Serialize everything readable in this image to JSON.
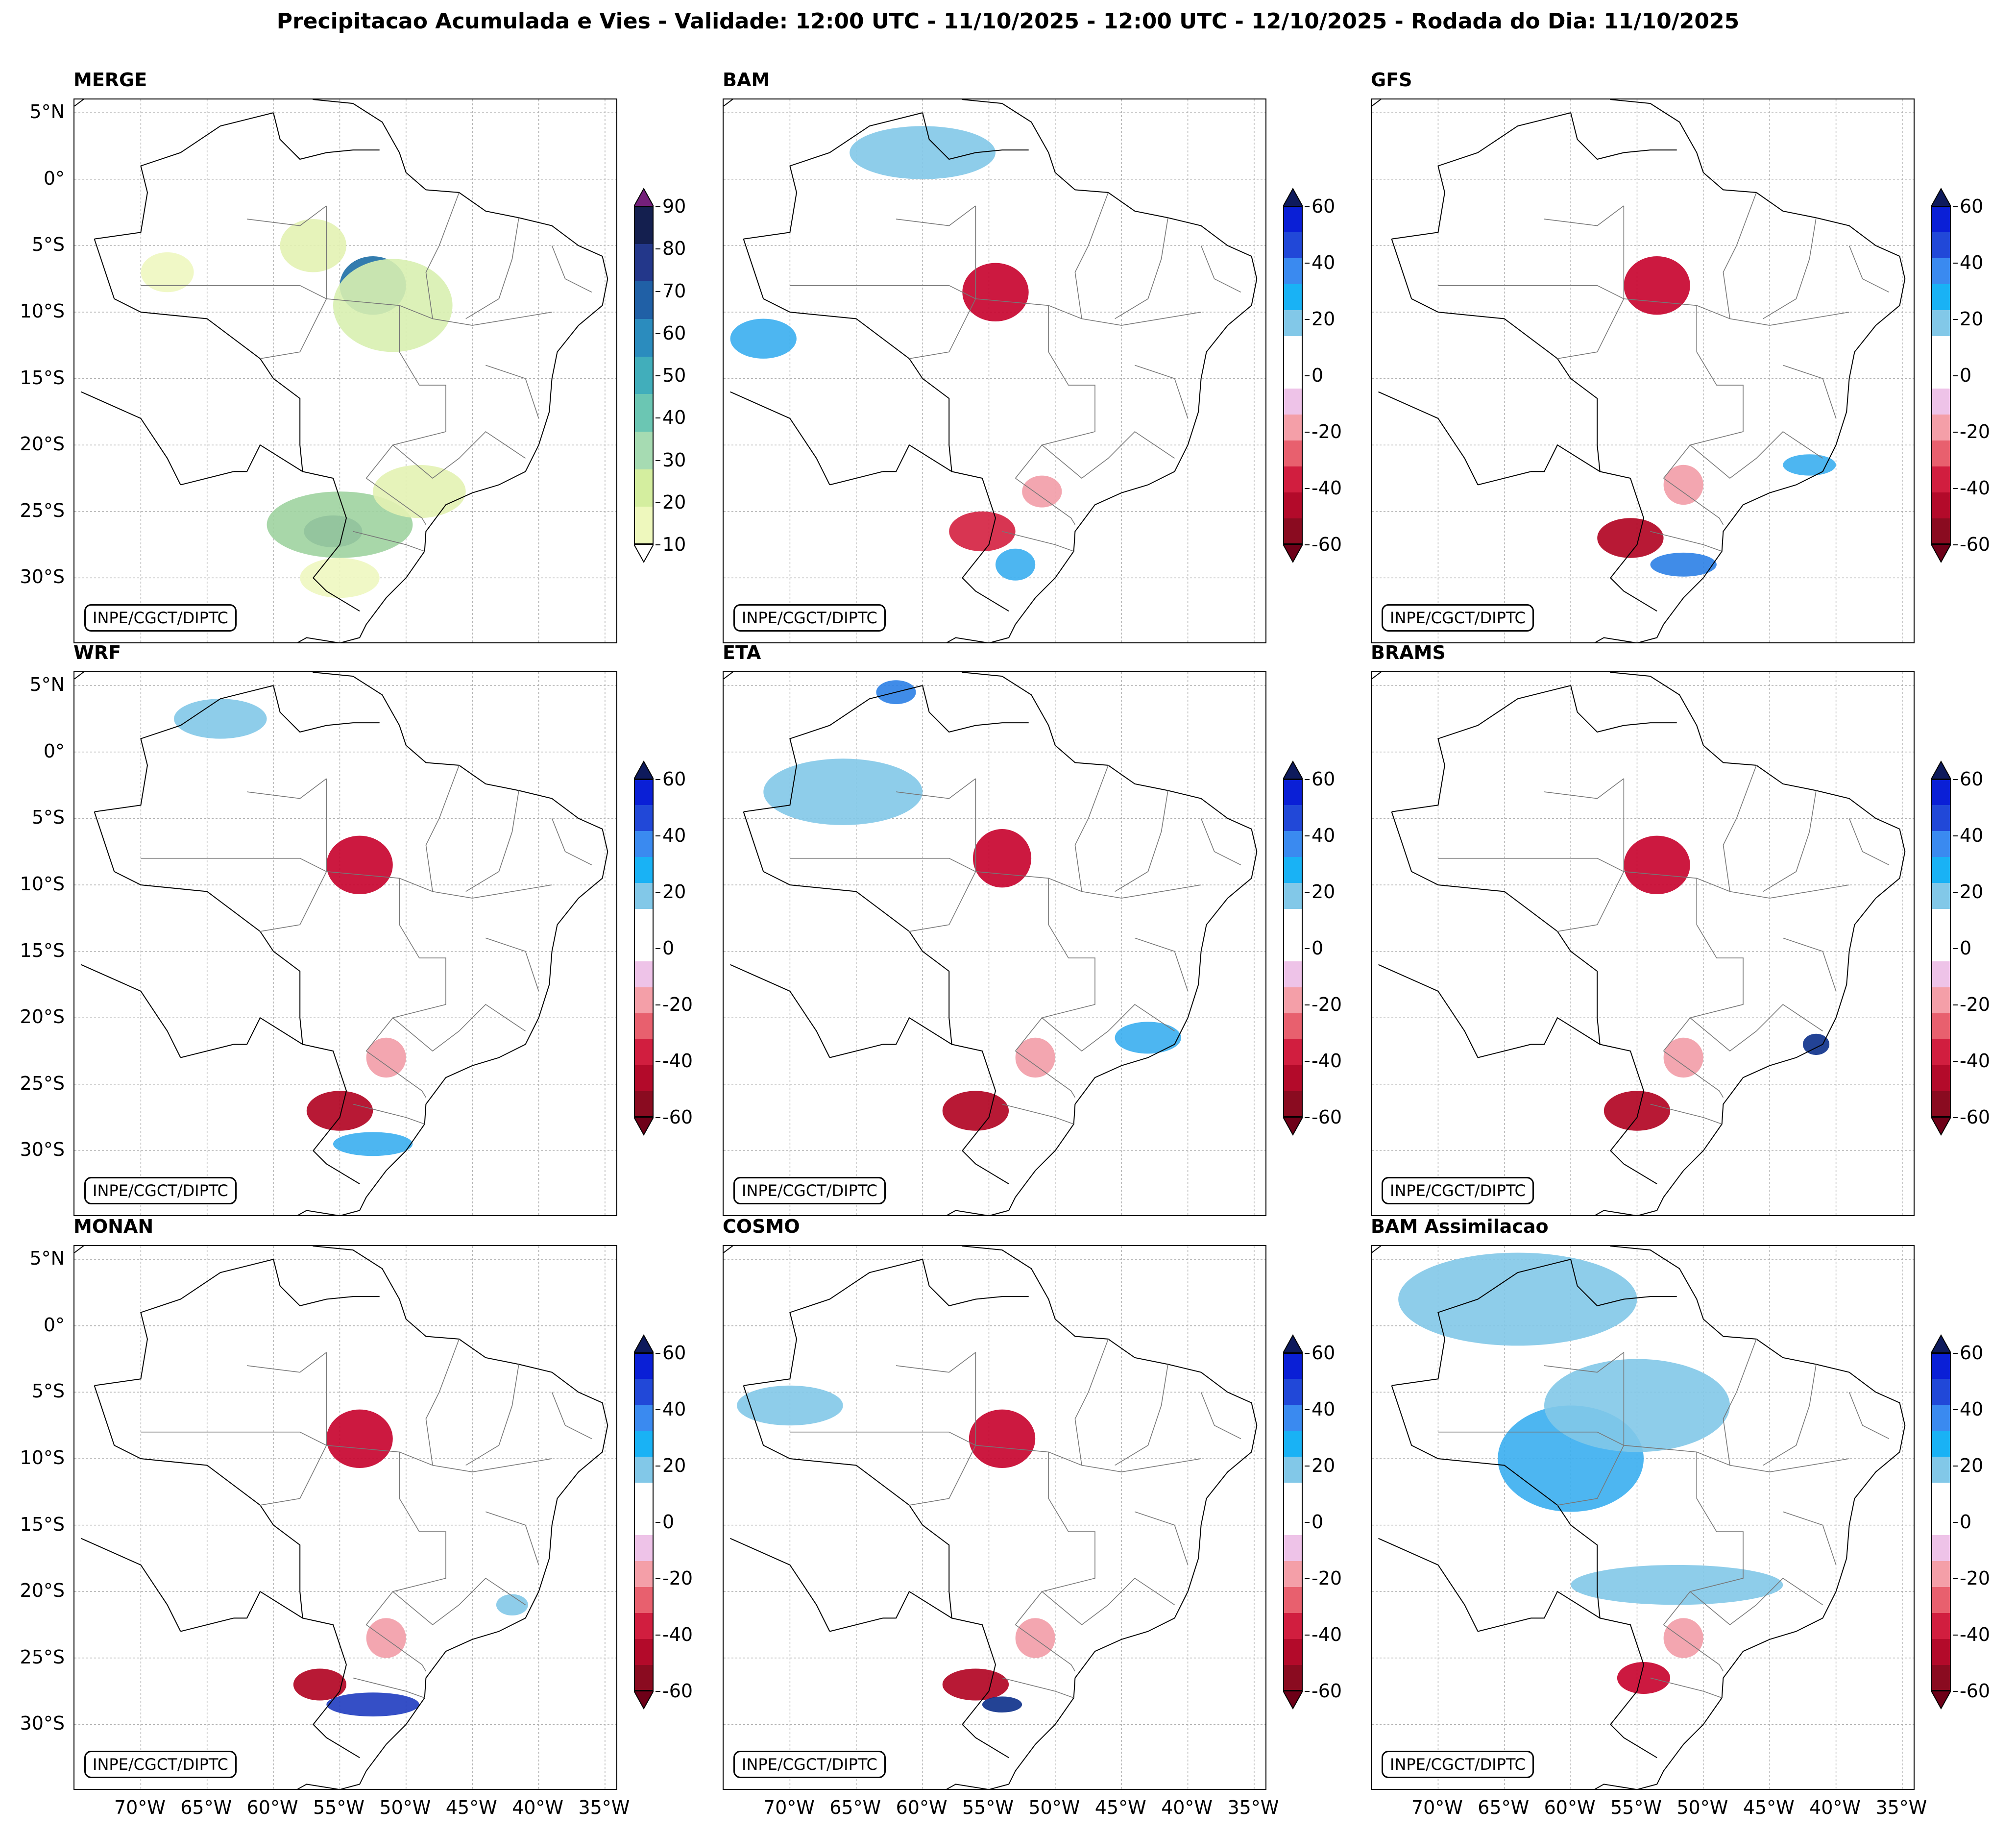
{
  "title": "Precipitacao Acumulada e Vies - Validade: 12:00 UTC - 11/10/2025 - 12:00 UTC - 12/10/2025 - Rodada do Dia: 11/10/2025",
  "credit": "INPE/CGCT/DIPTC",
  "latitude_labels": [
    "5°N",
    "0°",
    "5°S",
    "10°S",
    "15°S",
    "20°S",
    "25°S",
    "30°S"
  ],
  "longitude_labels": [
    "70°W",
    "65°W",
    "60°W",
    "55°W",
    "50°W",
    "45°W",
    "40°W",
    "35°W"
  ],
  "panels": [
    {
      "name": "MERGE",
      "colorbar": "precip",
      "features": [
        {
          "lon": -52.5,
          "lat": -8.0,
          "rx": 2.5,
          "ry": 2.2,
          "color": "#1d6ea5"
        },
        {
          "lon": -51.0,
          "lat": -9.5,
          "rx": 4.5,
          "ry": 3.5,
          "color": "#d8efb0"
        },
        {
          "lon": -55.5,
          "lat": -26.5,
          "rx": 2.2,
          "ry": 1.2,
          "color": "#1c3a7e"
        },
        {
          "lon": -55.0,
          "lat": -26.0,
          "rx": 5.5,
          "ry": 2.5,
          "color": "#9fd3a0"
        },
        {
          "lon": -49.0,
          "lat": -23.5,
          "rx": 3.5,
          "ry": 2.0,
          "color": "#e3f2b3"
        },
        {
          "lon": -57.0,
          "lat": -5.0,
          "rx": 2.5,
          "ry": 2.0,
          "color": "#e3f2b3"
        },
        {
          "lon": -68.0,
          "lat": -7.0,
          "rx": 2.0,
          "ry": 1.5,
          "color": "#eef7c0"
        },
        {
          "lon": -55.0,
          "lat": -30.0,
          "rx": 3.0,
          "ry": 1.5,
          "color": "#eef7c0"
        }
      ]
    },
    {
      "name": "BAM",
      "colorbar": "bias",
      "features": [
        {
          "lon": -54.5,
          "lat": -8.5,
          "rx": 2.5,
          "ry": 2.2,
          "color": "#c7002b"
        },
        {
          "lon": -60.0,
          "lat": 2.0,
          "rx": 5.5,
          "ry": 2.0,
          "color": "#82c8e8"
        },
        {
          "lon": -72.0,
          "lat": -12.0,
          "rx": 2.5,
          "ry": 1.5,
          "color": "#3aaef0"
        },
        {
          "lon": -55.5,
          "lat": -26.5,
          "rx": 2.5,
          "ry": 1.5,
          "color": "#d41f3f"
        },
        {
          "lon": -53.0,
          "lat": -29.0,
          "rx": 1.5,
          "ry": 1.2,
          "color": "#3aaef0"
        },
        {
          "lon": -51.0,
          "lat": -23.5,
          "rx": 1.5,
          "ry": 1.2,
          "color": "#f29ca7"
        }
      ]
    },
    {
      "name": "GFS",
      "colorbar": "bias",
      "features": [
        {
          "lon": -53.5,
          "lat": -8.0,
          "rx": 2.5,
          "ry": 2.2,
          "color": "#c7002b"
        },
        {
          "lon": -55.5,
          "lat": -27.0,
          "rx": 2.5,
          "ry": 1.5,
          "color": "#b0001f"
        },
        {
          "lon": -51.5,
          "lat": -29.0,
          "rx": 2.5,
          "ry": 0.9,
          "color": "#2b7fe6"
        },
        {
          "lon": -42.0,
          "lat": -21.5,
          "rx": 2.0,
          "ry": 0.8,
          "color": "#3aaef0"
        },
        {
          "lon": -51.5,
          "lat": -23.0,
          "rx": 1.5,
          "ry": 1.5,
          "color": "#f29ca7"
        }
      ]
    },
    {
      "name": "WRF",
      "colorbar": "bias",
      "features": [
        {
          "lon": -53.5,
          "lat": -8.5,
          "rx": 2.5,
          "ry": 2.2,
          "color": "#c7002b"
        },
        {
          "lon": -55.0,
          "lat": -27.0,
          "rx": 2.5,
          "ry": 1.5,
          "color": "#b0001f"
        },
        {
          "lon": -52.5,
          "lat": -29.5,
          "rx": 3.0,
          "ry": 0.9,
          "color": "#3aaef0"
        },
        {
          "lon": -64.0,
          "lat": 2.5,
          "rx": 3.5,
          "ry": 1.5,
          "color": "#82c8e8"
        },
        {
          "lon": -51.5,
          "lat": -23.0,
          "rx": 1.5,
          "ry": 1.5,
          "color": "#f29ca7"
        }
      ]
    },
    {
      "name": "ETA",
      "colorbar": "bias",
      "features": [
        {
          "lon": -54.0,
          "lat": -8.0,
          "rx": 2.2,
          "ry": 2.2,
          "color": "#c7002b"
        },
        {
          "lon": -66.0,
          "lat": -3.0,
          "rx": 6.0,
          "ry": 2.5,
          "color": "#82c8e8"
        },
        {
          "lon": -56.0,
          "lat": -27.0,
          "rx": 2.5,
          "ry": 1.5,
          "color": "#b0001f"
        },
        {
          "lon": -43.0,
          "lat": -21.5,
          "rx": 2.5,
          "ry": 1.2,
          "color": "#3aaef0"
        },
        {
          "lon": -62.0,
          "lat": 4.5,
          "rx": 1.5,
          "ry": 0.9,
          "color": "#2b7fe6"
        },
        {
          "lon": -51.5,
          "lat": -23.0,
          "rx": 1.5,
          "ry": 1.5,
          "color": "#f29ca7"
        }
      ]
    },
    {
      "name": "BRAMS",
      "colorbar": "bias",
      "features": [
        {
          "lon": -53.5,
          "lat": -8.5,
          "rx": 2.5,
          "ry": 2.2,
          "color": "#c7002b"
        },
        {
          "lon": -55.0,
          "lat": -27.0,
          "rx": 2.5,
          "ry": 1.5,
          "color": "#b0001f"
        },
        {
          "lon": -41.5,
          "lat": -22.0,
          "rx": 1.0,
          "ry": 0.8,
          "color": "#0b2f8a"
        },
        {
          "lon": -51.5,
          "lat": -23.0,
          "rx": 1.5,
          "ry": 1.5,
          "color": "#f29ca7"
        }
      ]
    },
    {
      "name": "MONAN",
      "colorbar": "bias",
      "features": [
        {
          "lon": -53.5,
          "lat": -8.5,
          "rx": 2.5,
          "ry": 2.2,
          "color": "#c7002b"
        },
        {
          "lon": -56.5,
          "lat": -27.0,
          "rx": 2.0,
          "ry": 1.2,
          "color": "#b0001f"
        },
        {
          "lon": -52.5,
          "lat": -28.5,
          "rx": 3.5,
          "ry": 0.9,
          "color": "#1f3cc0"
        },
        {
          "lon": -51.5,
          "lat": -23.5,
          "rx": 1.5,
          "ry": 1.5,
          "color": "#f29ca7"
        },
        {
          "lon": -42.0,
          "lat": -21.0,
          "rx": 1.2,
          "ry": 0.8,
          "color": "#82c8e8"
        }
      ]
    },
    {
      "name": "COSMO",
      "colorbar": "bias",
      "features": [
        {
          "lon": -54.0,
          "lat": -8.5,
          "rx": 2.5,
          "ry": 2.2,
          "color": "#c7002b"
        },
        {
          "lon": -56.0,
          "lat": -27.0,
          "rx": 2.5,
          "ry": 1.2,
          "color": "#b0001f"
        },
        {
          "lon": -54.0,
          "lat": -28.5,
          "rx": 1.5,
          "ry": 0.6,
          "color": "#0b2f8a"
        },
        {
          "lon": -70.0,
          "lat": -6.0,
          "rx": 4.0,
          "ry": 1.5,
          "color": "#82c8e8"
        },
        {
          "lon": -51.5,
          "lat": -23.5,
          "rx": 1.5,
          "ry": 1.5,
          "color": "#f29ca7"
        }
      ]
    },
    {
      "name": "BAM Assimilacao",
      "colorbar": "bias",
      "features": [
        {
          "lon": -60.0,
          "lat": -10.0,
          "rx": 5.5,
          "ry": 4.0,
          "color": "#3aaef0"
        },
        {
          "lon": -55.0,
          "lat": -6.0,
          "rx": 7.0,
          "ry": 3.5,
          "color": "#82c8e8"
        },
        {
          "lon": -64.0,
          "lat": 2.0,
          "rx": 9.0,
          "ry": 3.5,
          "color": "#82c8e8"
        },
        {
          "lon": -52.0,
          "lat": -19.5,
          "rx": 8.0,
          "ry": 1.5,
          "color": "#82c8e8"
        },
        {
          "lon": -54.5,
          "lat": -26.5,
          "rx": 2.0,
          "ry": 1.2,
          "color": "#c7002b"
        },
        {
          "lon": -51.5,
          "lat": -23.5,
          "rx": 1.5,
          "ry": 1.5,
          "color": "#f29ca7"
        }
      ]
    }
  ],
  "colorbars": {
    "precip": {
      "labels": [
        "90",
        "80",
        "70",
        "60",
        "50",
        "40",
        "30",
        "20",
        "10"
      ],
      "colors": [
        "#141f4f",
        "#23378a",
        "#2060a6",
        "#2b8cbe",
        "#41aebb",
        "#6bc6b3",
        "#a6dbb2",
        "#d4ee9f",
        "#eef8bd"
      ],
      "max_color": "#74207a",
      "min_color": "#ffffff"
    },
    "bias": {
      "labels": [
        "60",
        "40",
        "20",
        "0",
        "-20",
        "-40",
        "-60"
      ],
      "colors": [
        "#0a1fd6",
        "#2148d8",
        "#3a8af0",
        "#19b2f5",
        "#82c8e8",
        "#ffffff",
        "#ffffff",
        "#eec3e8",
        "#f49fa8",
        "#e8606e",
        "#d11e3f",
        "#b30a2a",
        "#8a0b20"
      ],
      "max_color": "#0e1a5c",
      "min_color": "#6e0018"
    }
  }
}
